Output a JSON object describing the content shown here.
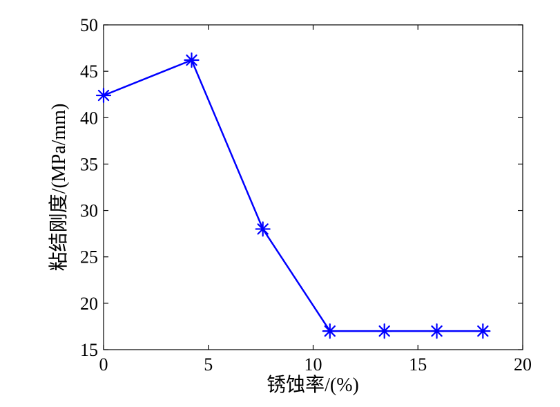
{
  "chart_data": {
    "type": "line",
    "xlabel": "锈蚀率/(%)",
    "ylabel": "粘结刚度/(MPa/mm)",
    "xlim": [
      0,
      20
    ],
    "ylim": [
      15,
      50
    ],
    "xticks": [
      "0",
      "5",
      "10",
      "15",
      "20"
    ],
    "yticks": [
      "15",
      "20",
      "25",
      "30",
      "35",
      "40",
      "45",
      "50"
    ],
    "grid": false,
    "legend": false,
    "marker": "asterisk",
    "series": [
      {
        "color": "#0000ff",
        "points": [
          {
            "x": 0,
            "y": 42.4
          },
          {
            "x": 4.2,
            "y": 46.2
          },
          {
            "x": 7.6,
            "y": 28.0
          },
          {
            "x": 10.8,
            "y": 17.0
          },
          {
            "x": 13.4,
            "y": 17.0
          },
          {
            "x": 15.9,
            "y": 17.0
          },
          {
            "x": 18.1,
            "y": 17.0
          }
        ]
      }
    ]
  }
}
